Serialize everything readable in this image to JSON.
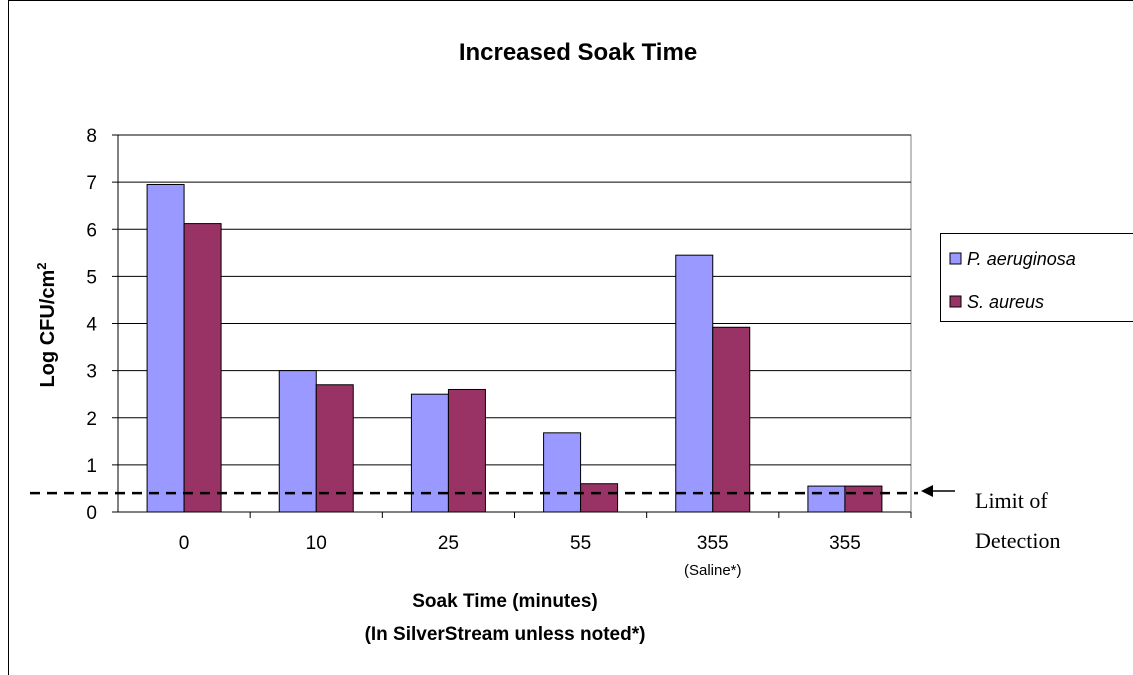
{
  "chart_data": {
    "type": "bar",
    "title": "Increased Soak Time",
    "ylabel": "Log CFU/cm",
    "ylabel_sup": "2",
    "xlabel": "Soak Time (minutes)",
    "xlabel_line2": "(In SilverStream unless noted*)",
    "ylim": [
      0,
      8
    ],
    "yticks": [
      "0",
      "1",
      "2",
      "3",
      "4",
      "5",
      "6",
      "7",
      "8"
    ],
    "categories": [
      "0",
      "10",
      "25",
      "55",
      "355",
      "355"
    ],
    "category_sublabels": [
      "",
      "",
      "",
      "",
      "(Saline*)",
      ""
    ],
    "series": [
      {
        "name": "P. aeruginosa",
        "color": "#9999FF",
        "values": [
          6.95,
          3.0,
          2.5,
          1.68,
          5.45,
          0.55
        ]
      },
      {
        "name": "S. aureus",
        "color": "#993366",
        "values": [
          6.12,
          2.7,
          2.6,
          0.6,
          3.92,
          0.55
        ]
      }
    ],
    "grid": true,
    "legend": "right",
    "reference_line": {
      "value": 0.4,
      "style": "dashed",
      "label_line1": "Limit of",
      "label_line2": "Detection"
    }
  }
}
